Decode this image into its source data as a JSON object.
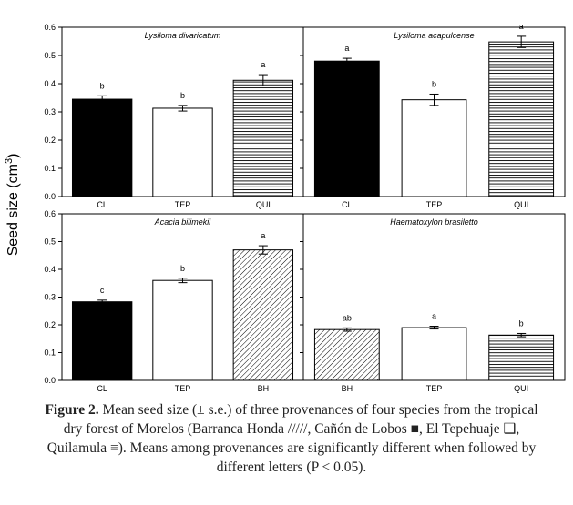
{
  "figure": {
    "y_axis_label": "Seed size (cm",
    "y_axis_label_sup": "3",
    "y_axis_label_close": ")"
  },
  "legend_patterns": {
    "Barranca Honda": "diagonal-hatch",
    "Cañón de Lobos": "solid-black",
    "El Tepehuaje": "white",
    "Quilamula": "horizontal-lines"
  },
  "colors": {
    "bar_solid": "#000000",
    "bar_white": "#ffffff",
    "stroke": "#000000"
  },
  "chart_data": [
    {
      "type": "bar",
      "title": "Lysiloma divaricatum",
      "categories": [
        "CL",
        "TEP",
        "QUI"
      ],
      "values": [
        0.345,
        0.313,
        0.412
      ],
      "errors": [
        0.012,
        0.01,
        0.02
      ],
      "letters": [
        "b",
        "b",
        "a"
      ],
      "patterns": [
        "solid-black",
        "white",
        "horizontal-lines"
      ],
      "ylim": [
        0,
        0.6
      ],
      "yticks": [
        "0.0",
        "0.1",
        "0.2",
        "0.3",
        "0.4",
        "0.5",
        "0.6"
      ],
      "ylabel": "Seed size (cm3)"
    },
    {
      "type": "bar",
      "title": "Lysiloma acapulcense",
      "categories": [
        "CL",
        "TEP",
        "QUI"
      ],
      "values": [
        0.48,
        0.343,
        0.548
      ],
      "errors": [
        0.01,
        0.02,
        0.02
      ],
      "letters": [
        "a",
        "b",
        "a"
      ],
      "patterns": [
        "solid-black",
        "white",
        "horizontal-lines"
      ],
      "ylim": [
        0,
        0.6
      ],
      "yticks": [],
      "ylabel": ""
    },
    {
      "type": "bar",
      "title": "Acacia bilimekii",
      "categories": [
        "CL",
        "TEP",
        "BH"
      ],
      "values": [
        0.283,
        0.36,
        0.47
      ],
      "errors": [
        0.006,
        0.008,
        0.015
      ],
      "letters": [
        "c",
        "b",
        "a"
      ],
      "patterns": [
        "solid-black",
        "white",
        "diagonal-hatch"
      ],
      "ylim": [
        0,
        0.6
      ],
      "yticks": [
        "0.0",
        "0.1",
        "0.2",
        "0.3",
        "0.4",
        "0.5",
        "0.6"
      ],
      "ylabel": "Seed size (cm3)"
    },
    {
      "type": "bar",
      "title": "Haematoxylon brasiletto",
      "categories": [
        "BH",
        "TEP",
        "QUI"
      ],
      "values": [
        0.183,
        0.19,
        0.163
      ],
      "errors": [
        0.006,
        0.005,
        0.006
      ],
      "letters": [
        "ab",
        "a",
        "b"
      ],
      "patterns": [
        "diagonal-hatch",
        "white",
        "horizontal-lines"
      ],
      "ylim": [
        0,
        0.6
      ],
      "yticks": [],
      "ylabel": ""
    }
  ],
  "caption": {
    "label": "Figure 2.",
    "text": "Mean seed size (± s.e.) of three provenances of four species from the tropical dry forest of Morelos (Barranca Honda /////, Cañón de Lobos ■, El Tepehuaje ❑, Quilamula ≡). Means among provenances are significantly different when followed by different letters (P < 0.05)."
  }
}
